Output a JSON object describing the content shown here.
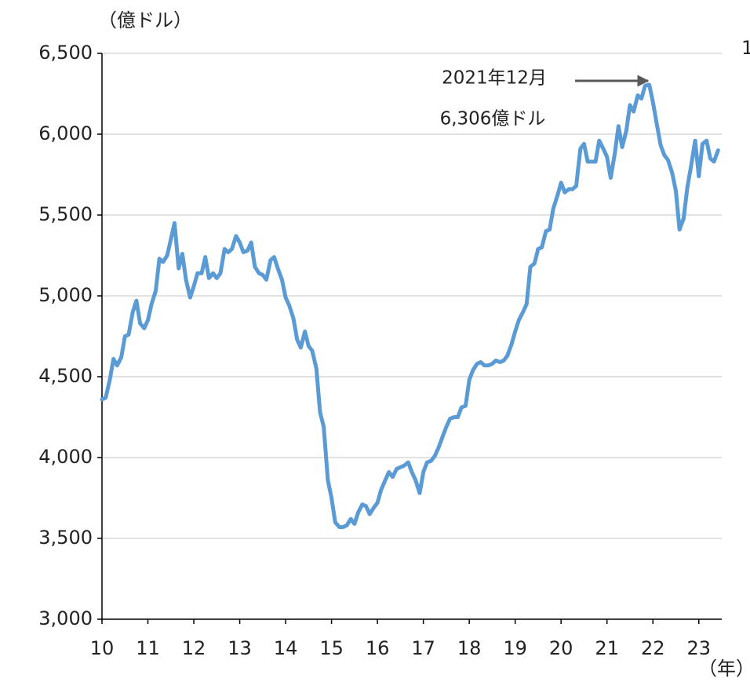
{
  "chart_data": {
    "type": "line",
    "y_unit_label": "（億ドル）",
    "x_unit_label": "（年）",
    "corner_note": "1",
    "annotation": {
      "date": "2021年12月",
      "value_text": "6,306億ドル"
    },
    "xlim": [
      10,
      23.5
    ],
    "xticks": [
      10,
      11,
      12,
      13,
      14,
      15,
      16,
      17,
      18,
      19,
      20,
      21,
      22,
      23
    ],
    "ylim": [
      3000,
      6500
    ],
    "yticks": [
      {
        "value": 3000,
        "label": "3,000"
      },
      {
        "value": 3500,
        "label": "3,500"
      },
      {
        "value": 4000,
        "label": "4,000"
      },
      {
        "value": 4500,
        "label": "4,500"
      },
      {
        "value": 5000,
        "label": "5,000"
      },
      {
        "value": 5500,
        "label": "5,500"
      },
      {
        "value": 6000,
        "label": "6,000"
      },
      {
        "value": 6500,
        "label": "6,500"
      }
    ],
    "grid": true,
    "x": [
      10,
      10.08,
      10.17,
      10.25,
      10.33,
      10.42,
      10.5,
      10.58,
      10.67,
      10.75,
      10.83,
      10.92,
      11,
      11.08,
      11.17,
      11.25,
      11.33,
      11.42,
      11.5,
      11.58,
      11.67,
      11.75,
      11.83,
      11.92,
      12,
      12.08,
      12.17,
      12.25,
      12.33,
      12.42,
      12.5,
      12.58,
      12.67,
      12.75,
      12.83,
      12.92,
      13,
      13.08,
      13.17,
      13.25,
      13.33,
      13.42,
      13.5,
      13.58,
      13.67,
      13.75,
      13.83,
      13.92,
      14,
      14.08,
      14.17,
      14.25,
      14.33,
      14.42,
      14.5,
      14.58,
      14.67,
      14.75,
      14.83,
      14.92,
      15,
      15.08,
      15.17,
      15.25,
      15.33,
      15.42,
      15.5,
      15.58,
      15.67,
      15.75,
      15.83,
      15.92,
      16,
      16.08,
      16.17,
      16.25,
      16.33,
      16.42,
      16.5,
      16.58,
      16.67,
      16.75,
      16.83,
      16.92,
      17,
      17.08,
      17.17,
      17.25,
      17.33,
      17.42,
      17.5,
      17.58,
      17.67,
      17.75,
      17.83,
      17.92,
      18,
      18.08,
      18.17,
      18.25,
      18.33,
      18.42,
      18.5,
      18.58,
      18.67,
      18.75,
      18.83,
      18.92,
      19,
      19.08,
      19.17,
      19.25,
      19.33,
      19.42,
      19.5,
      19.58,
      19.67,
      19.75,
      19.83,
      19.92,
      20,
      20.08,
      20.17,
      20.25,
      20.33,
      20.42,
      20.5,
      20.58,
      20.67,
      20.75,
      20.83,
      20.92,
      21,
      21.08,
      21.17,
      21.25,
      21.33,
      21.42,
      21.5,
      21.58,
      21.67,
      21.75,
      21.83,
      21.92,
      22,
      22.08,
      22.17,
      22.25,
      22.33,
      22.42,
      22.5,
      22.58,
      22.67,
      22.75,
      22.83,
      22.92,
      23,
      23.08,
      23.17,
      23.25,
      23.33,
      23.42
    ],
    "series": [
      {
        "color": "#5b9bd5",
        "values": [
          4360,
          4370,
          4480,
          4610,
          4570,
          4620,
          4750,
          4760,
          4900,
          4970,
          4830,
          4800,
          4850,
          4950,
          5030,
          5230,
          5210,
          5250,
          5350,
          5450,
          5170,
          5260,
          5100,
          4990,
          5060,
          5140,
          5140,
          5240,
          5110,
          5140,
          5110,
          5140,
          5290,
          5270,
          5290,
          5370,
          5330,
          5270,
          5280,
          5330,
          5180,
          5140,
          5130,
          5100,
          5220,
          5240,
          5170,
          5100,
          4990,
          4940,
          4860,
          4730,
          4680,
          4780,
          4690,
          4660,
          4550,
          4280,
          4190,
          3860,
          3750,
          3600,
          3570,
          3570,
          3580,
          3620,
          3590,
          3660,
          3710,
          3700,
          3650,
          3690,
          3720,
          3800,
          3860,
          3910,
          3880,
          3930,
          3940,
          3950,
          3970,
          3910,
          3860,
          3780,
          3910,
          3970,
          3980,
          4010,
          4060,
          4130,
          4190,
          4240,
          4250,
          4250,
          4310,
          4320,
          4480,
          4540,
          4580,
          4590,
          4570,
          4570,
          4580,
          4600,
          4590,
          4600,
          4630,
          4700,
          4780,
          4850,
          4900,
          4950,
          5180,
          5200,
          5290,
          5300,
          5400,
          5410,
          5540,
          5620,
          5700,
          5640,
          5660,
          5660,
          5680,
          5910,
          5940,
          5830,
          5830,
          5830,
          5960,
          5910,
          5860,
          5730,
          5880,
          6050,
          5920,
          6020,
          6180,
          6140,
          6240,
          6220,
          6300,
          6306,
          6200,
          6070,
          5930,
          5870,
          5840,
          5760,
          5650,
          5410,
          5480,
          5670,
          5800,
          5960,
          5740,
          5940,
          5960,
          5850,
          5830,
          5900
        ]
      }
    ]
  }
}
